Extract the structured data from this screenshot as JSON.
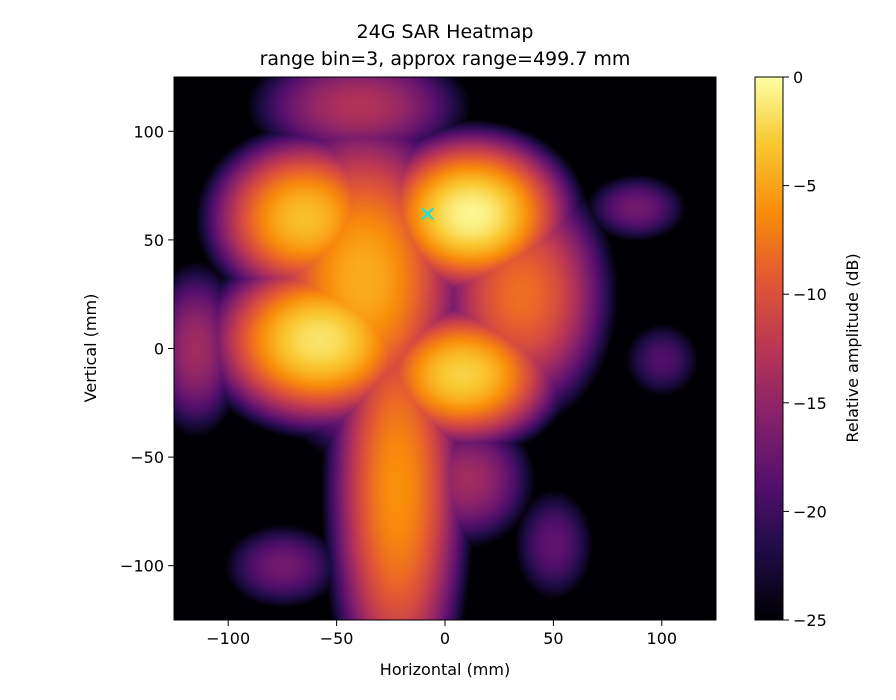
{
  "chart_data": {
    "type": "heatmap",
    "title": "24G SAR Heatmap",
    "subtitle": "range bin=3, approx range=499.7 mm",
    "xlabel": "Horizontal (mm)",
    "ylabel": "Vertical (mm)",
    "xlim": [
      -125,
      125
    ],
    "ylim": [
      -125,
      125
    ],
    "xticks": [
      -100,
      -50,
      0,
      50,
      100
    ],
    "yticks": [
      -100,
      -50,
      0,
      50,
      100
    ],
    "tick_labels_x": [
      "−100",
      "−50",
      "0",
      "50",
      "100"
    ],
    "tick_labels_y": [
      "−100",
      "−50",
      "0",
      "50",
      "100"
    ],
    "colormap": "inferno",
    "colorbar": {
      "label": "Relative amplitude (dB)",
      "range": [
        -25,
        0
      ],
      "ticks": [
        0,
        -5,
        -10,
        -15,
        -20,
        -25
      ],
      "tick_labels": [
        "0",
        "−5",
        "−10",
        "−15",
        "−20",
        "−25"
      ]
    },
    "peak_marker": {
      "x": -8,
      "y": 62,
      "symbol": "x",
      "color": "#22e0d0"
    },
    "blobs_db": [
      {
        "x": 12,
        "y": 62,
        "sx": 16,
        "sy": 13,
        "db": -0.5
      },
      {
        "x": -58,
        "y": 4,
        "sx": 18,
        "sy": 14,
        "db": -1.5
      },
      {
        "x": 8,
        "y": -12,
        "sx": 16,
        "sy": 12,
        "db": -2.5
      },
      {
        "x": -65,
        "y": 60,
        "sx": 16,
        "sy": 14,
        "db": -3.5
      },
      {
        "x": -38,
        "y": 32,
        "sx": 18,
        "sy": 28,
        "db": -4.5
      },
      {
        "x": -22,
        "y": -65,
        "sx": 12,
        "sy": 40,
        "db": -6
      },
      {
        "x": 35,
        "y": 25,
        "sx": 16,
        "sy": 22,
        "db": -8
      },
      {
        "x": 88,
        "y": 65,
        "sx": 12,
        "sy": 8,
        "db": -17
      },
      {
        "x": -40,
        "y": 112,
        "sx": 22,
        "sy": 12,
        "db": -13
      },
      {
        "x": -115,
        "y": 0,
        "sx": 10,
        "sy": 18,
        "db": -14
      },
      {
        "x": 100,
        "y": -5,
        "sx": 10,
        "sy": 10,
        "db": -19
      },
      {
        "x": 50,
        "y": -90,
        "sx": 10,
        "sy": 14,
        "db": -18
      },
      {
        "x": -75,
        "y": -100,
        "sx": 14,
        "sy": 10,
        "db": -17
      },
      {
        "x": 10,
        "y": -60,
        "sx": 14,
        "sy": 14,
        "db": -14
      }
    ]
  }
}
